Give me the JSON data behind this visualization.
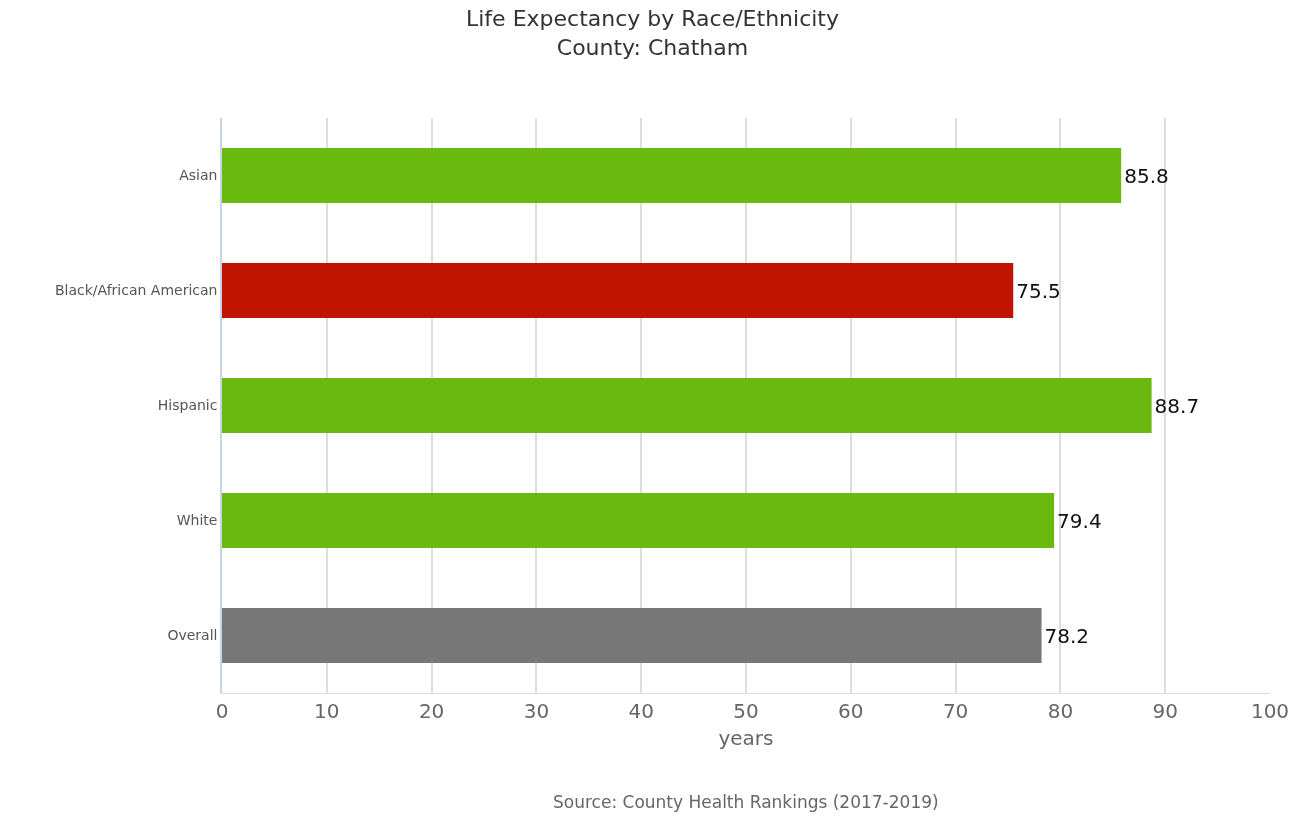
{
  "chart_data": {
    "type": "bar",
    "orientation": "horizontal",
    "title": "Life Expectancy by Race/Ethnicity\nCounty: Chatham",
    "xlabel": "years",
    "categories": [
      "Asian",
      "Black/African American",
      "Hispanic",
      "White",
      "Overall"
    ],
    "values": [
      85.8,
      75.5,
      88.7,
      79.4,
      78.2
    ],
    "colors": [
      "#6ab90f",
      "#c01400",
      "#6ab90f",
      "#6ab90f",
      "#777777"
    ],
    "data_labels": true,
    "xlim": [
      0,
      100
    ],
    "xticks": [
      0,
      10,
      20,
      30,
      40,
      50,
      60,
      70,
      80,
      90,
      100
    ],
    "grid": "x",
    "annotations": [
      "Source: County Health Rankings (2017-2019)"
    ]
  }
}
